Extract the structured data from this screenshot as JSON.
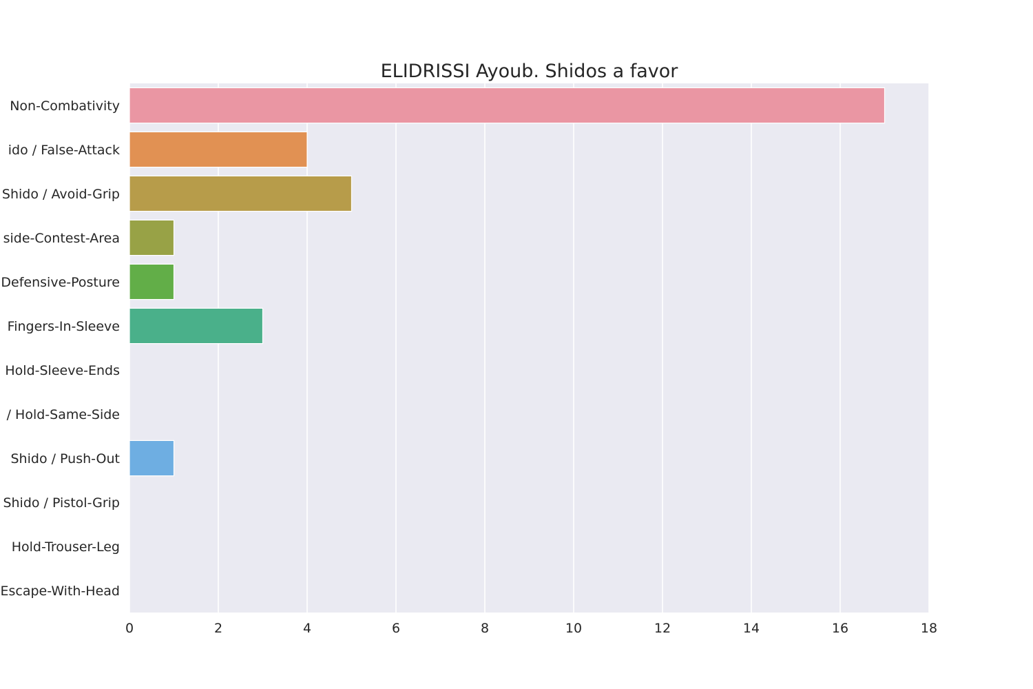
{
  "chart_data": {
    "type": "bar",
    "orientation": "horizontal",
    "title": "ELIDRISSI Ayoub. Shidos a favor",
    "xlabel": "",
    "ylabel": "",
    "xlim": [
      0,
      18
    ],
    "xticks": [
      0,
      2,
      4,
      6,
      8,
      10,
      12,
      14,
      16,
      18
    ],
    "grid": true,
    "background_color": "#EAEAF2",
    "categories": [
      "Non-Combativity",
      "ido / False-Attack",
      "Shido / Avoid-Grip",
      "side-Contest-Area",
      "Defensive-Posture",
      "Fingers-In-Sleeve",
      "Hold-Sleeve-Ends",
      "/ Hold-Same-Side",
      "Shido / Push-Out",
      "Shido / Pistol-Grip",
      "Hold-Trouser-Leg",
      "Escape-With-Head"
    ],
    "values": [
      17,
      4,
      5,
      1,
      1,
      3,
      0,
      0,
      1,
      0,
      0,
      0
    ],
    "colors": [
      "#EA96A3",
      "#E19153",
      "#B79C4A",
      "#98A246",
      "#62AE48",
      "#4AB08A",
      "#4DACA9",
      "#50AACB",
      "#6EAEE2",
      "#A6A6EB",
      "#DA91EA",
      "#E991C7"
    ]
  }
}
